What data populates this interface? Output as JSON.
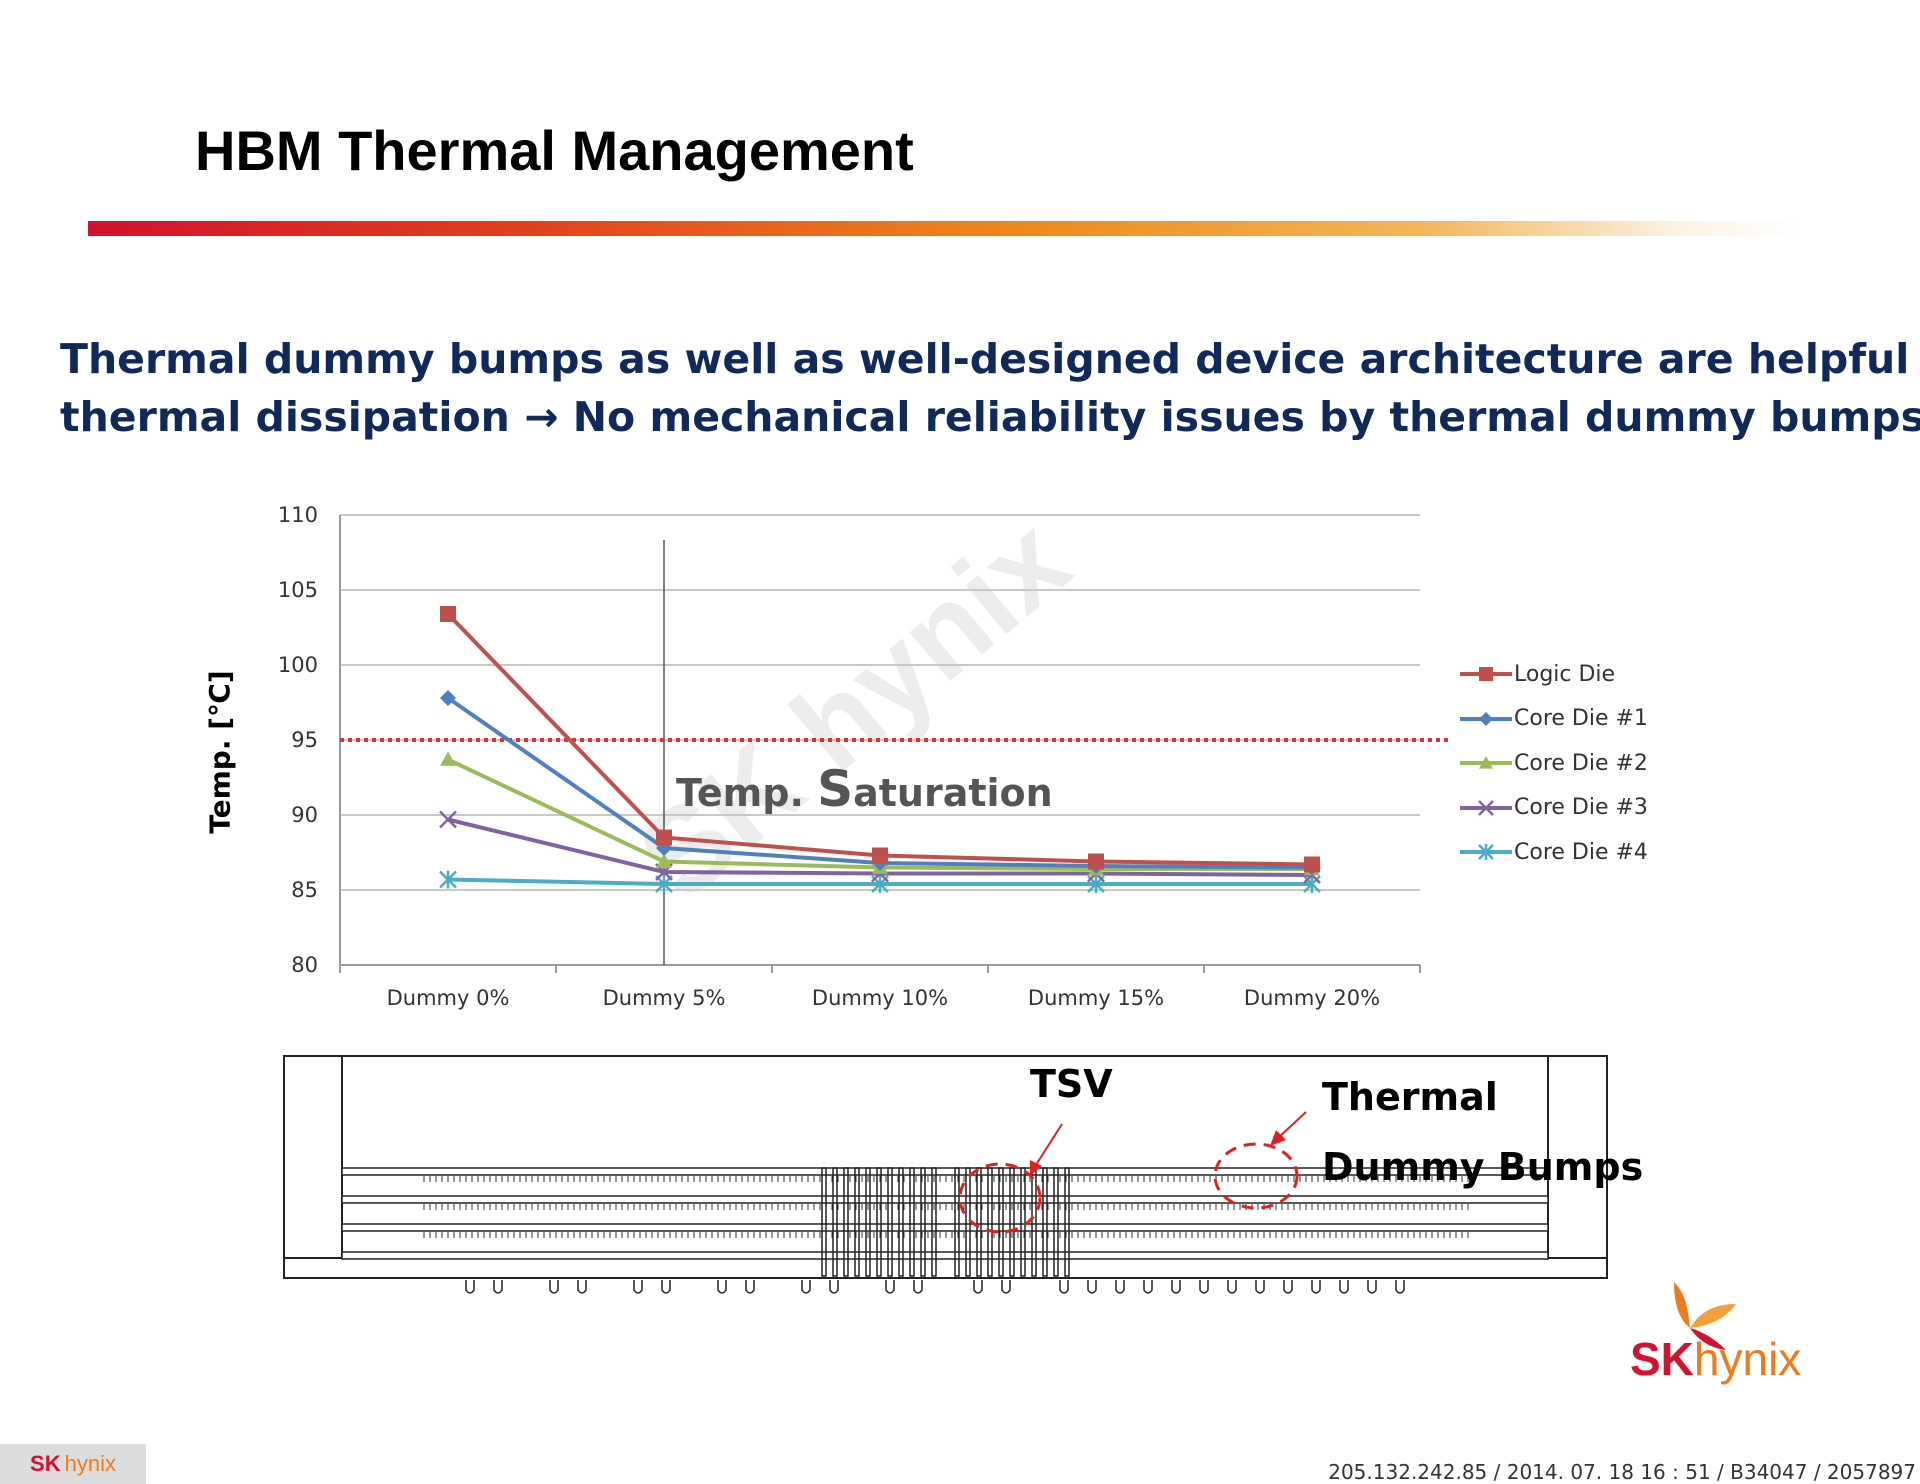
{
  "page": {
    "title": "HBM Thermal Management",
    "subtitle_line1": "Thermal dummy bumps as well as well-designed device architecture are helpful for",
    "subtitle_line2": "thermal dissipation → No mechanical reliability issues by thermal dummy bumps.",
    "watermark": "SK hynix",
    "footer_info": "205.132.242.85 / 2014. 07. 18  16 : 51 / B34047 / 2057897"
  },
  "annotation": {
    "saturation_prefix": "Temp. ",
    "saturation_big": "S",
    "saturation_rest": "aturation"
  },
  "diagram": {
    "tsv_label": "TSV",
    "thermal_label_line1": "Thermal",
    "thermal_label_line2": "Dummy Bumps"
  },
  "logo": {
    "sk": "SK",
    "hynix": "hynix"
  },
  "chart_data": {
    "type": "line",
    "title": "",
    "xlabel": "",
    "ylabel": "Temp. [℃]",
    "categories": [
      "Dummy 0%",
      "Dummy 5%",
      "Dummy 10%",
      "Dummy 15%",
      "Dummy 20%"
    ],
    "ylim": [
      80,
      110
    ],
    "yticks": [
      80,
      85,
      90,
      95,
      100,
      105,
      110
    ],
    "grid": true,
    "legend_position": "right",
    "threshold": 95,
    "series": [
      {
        "name": "Logic Die",
        "color": "#c0504d",
        "marker": "square",
        "values": [
          103.4,
          88.5,
          87.3,
          86.9,
          86.7
        ]
      },
      {
        "name": "Core Die #1",
        "color": "#4f81bd",
        "marker": "diamond",
        "values": [
          97.8,
          87.8,
          86.8,
          86.6,
          86.5
        ]
      },
      {
        "name": "Core Die #2",
        "color": "#9bbb59",
        "marker": "triangle",
        "values": [
          93.7,
          86.9,
          86.5,
          86.4,
          86.4
        ]
      },
      {
        "name": "Core Die #3",
        "color": "#8064a2",
        "marker": "x",
        "values": [
          89.7,
          86.2,
          86.1,
          86.1,
          86.0
        ]
      },
      {
        "name": "Core Die #4",
        "color": "#4bacc6",
        "marker": "star",
        "values": [
          85.7,
          85.4,
          85.4,
          85.4,
          85.4
        ]
      }
    ]
  }
}
